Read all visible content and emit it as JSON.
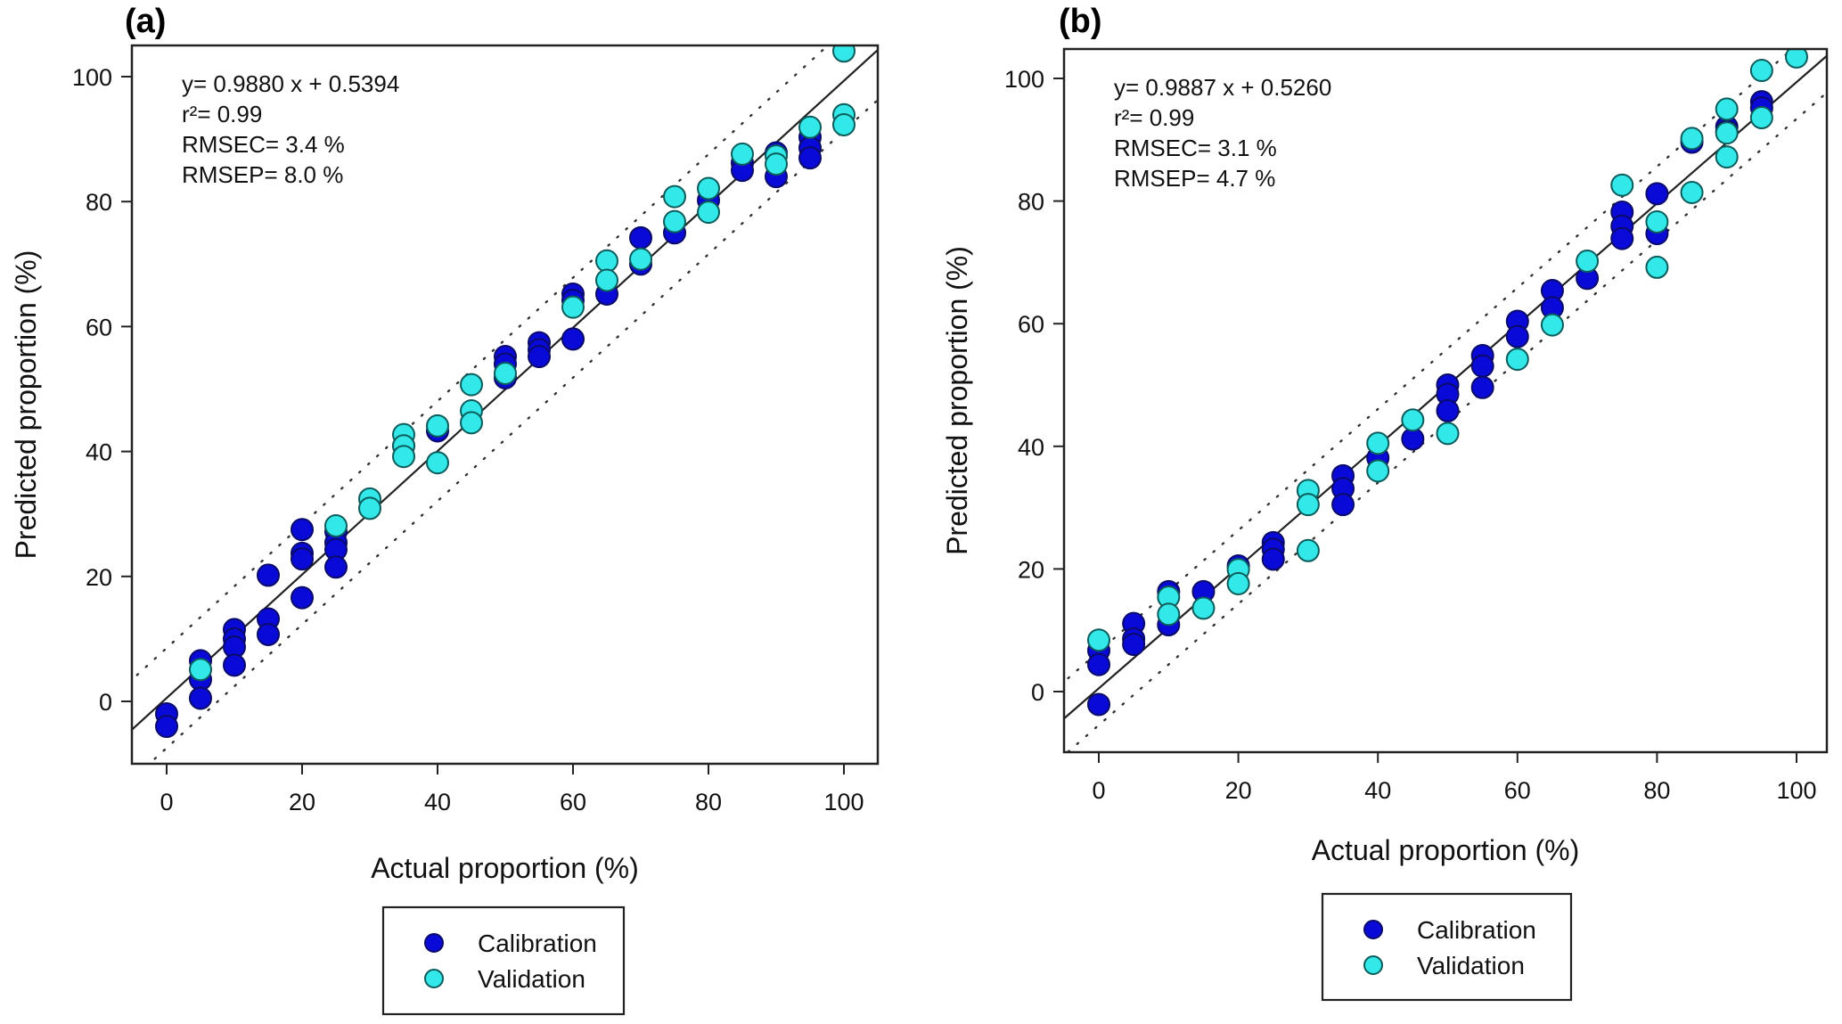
{
  "chart_data": [
    {
      "type": "scatter",
      "panel_label": "(a)",
      "xlabel": "Actual proportion (%)",
      "ylabel": "Predicted proportion (%)",
      "xlim": [
        -5,
        105
      ],
      "ylim": [
        -10,
        105
      ],
      "xticks": [
        0,
        20,
        40,
        60,
        80,
        100
      ],
      "yticks": [
        0,
        20,
        40,
        60,
        80,
        100
      ],
      "grid": false,
      "regression": {
        "slope": 0.988,
        "intercept": 0.5394
      },
      "limit_band_offset": 8,
      "annotations": [
        "y= 0.9880 x + 0.5394",
        "r²= 0.99",
        "RMSEC= 3.4 %",
        "RMSEP= 8.0 %"
      ],
      "legend": {
        "placement": "below",
        "entries": [
          "Calibration",
          "Validation"
        ]
      },
      "series": [
        {
          "name": "Calibration",
          "color": "#0a0ad8",
          "points": [
            [
              0,
              -2
            ],
            [
              0,
              -4
            ],
            [
              5,
              6.5
            ],
            [
              5,
              3.5
            ],
            [
              5,
              0.5
            ],
            [
              10,
              11.5
            ],
            [
              10,
              10
            ],
            [
              10,
              8.7
            ],
            [
              10,
              5.8
            ],
            [
              15,
              20.2
            ],
            [
              15,
              13.2
            ],
            [
              15,
              10.7
            ],
            [
              20,
              27.5
            ],
            [
              20,
              23.7
            ],
            [
              20,
              22.8
            ],
            [
              20,
              16.6
            ],
            [
              25,
              27.2
            ],
            [
              25,
              25.4
            ],
            [
              25,
              24.3
            ],
            [
              25,
              21.5
            ],
            [
              35,
              40.9
            ],
            [
              40,
              43.3
            ],
            [
              50,
              55.2
            ],
            [
              50,
              54
            ],
            [
              50,
              51.8
            ],
            [
              55,
              57.4
            ],
            [
              55,
              56.3
            ],
            [
              55,
              55.2
            ],
            [
              60,
              65.2
            ],
            [
              60,
              64.2
            ],
            [
              60,
              58
            ],
            [
              65,
              65.2
            ],
            [
              70,
              74.2
            ],
            [
              70,
              70
            ],
            [
              75,
              75
            ],
            [
              80,
              80.2
            ],
            [
              85,
              86.2
            ],
            [
              85,
              85
            ],
            [
              90,
              87.8
            ],
            [
              90,
              84
            ],
            [
              95,
              90.3
            ],
            [
              95,
              88.6
            ],
            [
              95,
              87
            ]
          ]
        },
        {
          "name": "Validation",
          "color": "#33e8e8",
          "points": [
            [
              5,
              5.1
            ],
            [
              25,
              28.1
            ],
            [
              30,
              32.4
            ],
            [
              30,
              30.9
            ],
            [
              35,
              42.7
            ],
            [
              35,
              40.9
            ],
            [
              35,
              39.2
            ],
            [
              40,
              44.1
            ],
            [
              40,
              38.2
            ],
            [
              45,
              50.7
            ],
            [
              45,
              46.5
            ],
            [
              45,
              44.6
            ],
            [
              50,
              52.5
            ],
            [
              60,
              63.1
            ],
            [
              65,
              70.5
            ],
            [
              65,
              67.4
            ],
            [
              70,
              70.8
            ],
            [
              75,
              80.8
            ],
            [
              75,
              76.8
            ],
            [
              80,
              82.1
            ],
            [
              80,
              78.3
            ],
            [
              85,
              87.6
            ],
            [
              90,
              87.3
            ],
            [
              90,
              86
            ],
            [
              95,
              91.9
            ],
            [
              100,
              104.1
            ],
            [
              100,
              93.9
            ],
            [
              100,
              92.3
            ]
          ]
        }
      ]
    },
    {
      "type": "scatter",
      "panel_label": "(b)",
      "xlabel": "Actual proportion (%)",
      "ylabel": "Predicted proportion (%)",
      "xlim": [
        -5,
        104
      ],
      "ylim": [
        -10,
        105
      ],
      "xticks": [
        0,
        20,
        40,
        60,
        80,
        100
      ],
      "yticks": [
        0,
        20,
        40,
        60,
        80,
        100
      ],
      "grid": false,
      "regression": {
        "slope": 0.9887,
        "intercept": 0.526
      },
      "limit_band_offset": 6,
      "annotations": [
        "y= 0.9887 x + 0.5260",
        "r²= 0.99",
        "RMSEC= 3.1 %",
        "RMSEP= 4.7 %"
      ],
      "legend": {
        "placement": "below",
        "entries": [
          "Calibration",
          "Validation"
        ]
      },
      "series": [
        {
          "name": "Calibration",
          "color": "#0a0ad8",
          "points": [
            [
              0,
              6.7
            ],
            [
              0,
              4.4
            ],
            [
              0,
              -2.1
            ],
            [
              5,
              11.1
            ],
            [
              5,
              8.6
            ],
            [
              5,
              7.7
            ],
            [
              10,
              16.3
            ],
            [
              10,
              10.9
            ],
            [
              15,
              16.3
            ],
            [
              20,
              20.5
            ],
            [
              25,
              24.3
            ],
            [
              25,
              23.2
            ],
            [
              25,
              21.6
            ],
            [
              35,
              35.2
            ],
            [
              35,
              33.1
            ],
            [
              35,
              30.5
            ],
            [
              40,
              38.1
            ],
            [
              45,
              41.2
            ],
            [
              50,
              50
            ],
            [
              50,
              48.5
            ],
            [
              50,
              45.8
            ],
            [
              55,
              54.8
            ],
            [
              55,
              53.1
            ],
            [
              55,
              49.6
            ],
            [
              60,
              60.4
            ],
            [
              60,
              57.9
            ],
            [
              65,
              65.4
            ],
            [
              65,
              62.6
            ],
            [
              70,
              67.4
            ],
            [
              75,
              78.2
            ],
            [
              75,
              75.9
            ],
            [
              75,
              73.9
            ],
            [
              80,
              81.2
            ],
            [
              80,
              74.7
            ],
            [
              85,
              89.6
            ],
            [
              90,
              92.1
            ],
            [
              90,
              91.4
            ],
            [
              95,
              96.2
            ],
            [
              95,
              95.2
            ]
          ]
        },
        {
          "name": "Validation",
          "color": "#33e8e8",
          "points": [
            [
              0,
              8.4
            ],
            [
              10,
              15.4
            ],
            [
              10,
              12.6
            ],
            [
              15,
              13.6
            ],
            [
              20,
              19.9
            ],
            [
              20,
              17.6
            ],
            [
              30,
              32.8
            ],
            [
              30,
              30.5
            ],
            [
              30,
              23
            ],
            [
              40,
              40.5
            ],
            [
              40,
              36
            ],
            [
              45,
              44.3
            ],
            [
              50,
              42.1
            ],
            [
              60,
              54.2
            ],
            [
              65,
              59.8
            ],
            [
              70,
              70.2
            ],
            [
              75,
              82.6
            ],
            [
              80,
              76.6
            ],
            [
              80,
              69.2
            ],
            [
              85,
              90.2
            ],
            [
              85,
              81.4
            ],
            [
              90,
              95
            ],
            [
              90,
              91.1
            ],
            [
              90,
              87.2
            ],
            [
              95,
              101.3
            ],
            [
              95,
              93.6
            ],
            [
              100,
              103.5
            ]
          ]
        }
      ]
    }
  ]
}
